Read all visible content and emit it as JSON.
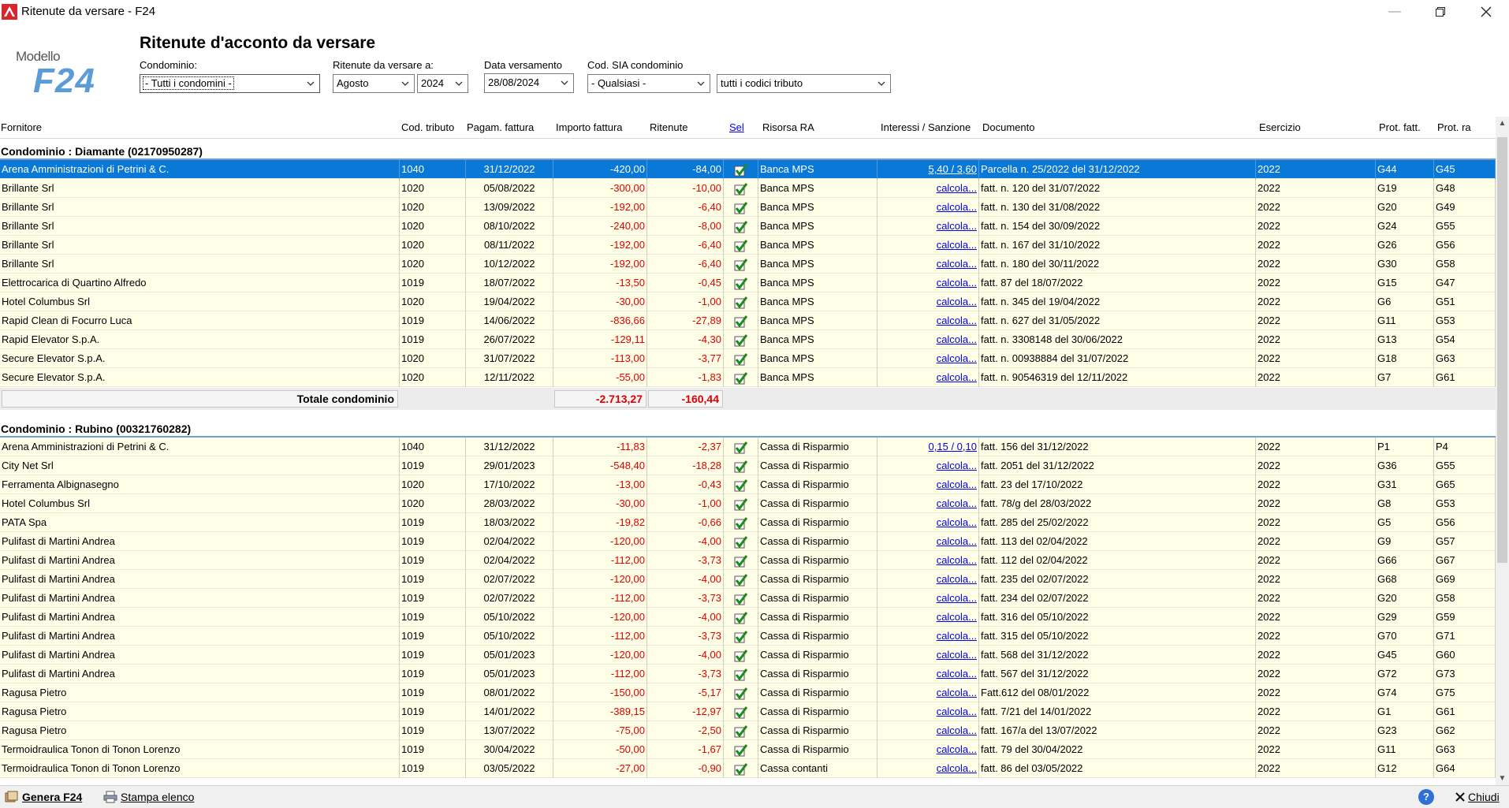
{
  "window": {
    "title": "Ritenute da versare - F24",
    "controls": [
      "minimize",
      "restore",
      "close"
    ]
  },
  "logo": {
    "small": "Modello",
    "big": "F24"
  },
  "header": {
    "title": "Ritenute d'acconto da versare",
    "condominio_label": "Condominio:",
    "condominio_value": "- Tutti i condomini -",
    "ritenute_label": "Ritenute da versare a:",
    "month_value": "Agosto",
    "year_value": "2024",
    "data_label": "Data versamento",
    "data_value": "28/08/2024",
    "sia_label": "Cod. SIA condominio",
    "sia_value": "- Qualsiasi -",
    "tributo_value": "tutti i codici tributo"
  },
  "columns": {
    "fornitore": "Fornitore",
    "cod_tributo": "Cod. tributo",
    "pagam": "Pagam. fattura",
    "importo": "Importo fattura",
    "ritenute": "Ritenute",
    "sel": "Sel",
    "risorsa": "Risorsa RA",
    "interessi": "Interessi / Sanzione",
    "documento": "Documento",
    "esercizio": "Esercizio",
    "prot_fatt": "Prot. fatt.",
    "prot_ra": "Prot. ra"
  },
  "groups": [
    {
      "title": "Condominio : Diamante (02170950287)",
      "total_label": "Totale condominio",
      "total_importo": "-2.713,27",
      "total_ritenute": "-160,44",
      "rows": [
        {
          "f": "Arena Amministrazioni di Petrini & C.",
          "t": "1040",
          "p": "31/12/2022",
          "i": "-420,00",
          "r": "-84,00",
          "ra": "Banca MPS",
          "is": "5,40 / 3,60",
          "d": "Parcella n. 25/2022 del 31/12/2022",
          "e": "2022",
          "pf": "G44",
          "pr": "G45"
        },
        {
          "f": "Brillante Srl",
          "t": "1020",
          "p": "05/08/2022",
          "i": "-300,00",
          "r": "-10,00",
          "ra": "Banca MPS",
          "is": "calcola...",
          "d": "fatt. n. 120 del 31/07/2022",
          "e": "2022",
          "pf": "G19",
          "pr": "G48"
        },
        {
          "f": "Brillante Srl",
          "t": "1020",
          "p": "13/09/2022",
          "i": "-192,00",
          "r": "-6,40",
          "ra": "Banca MPS",
          "is": "calcola...",
          "d": "fatt. n. 130 del 31/08/2022",
          "e": "2022",
          "pf": "G20",
          "pr": "G49"
        },
        {
          "f": "Brillante Srl",
          "t": "1020",
          "p": "08/10/2022",
          "i": "-240,00",
          "r": "-8,00",
          "ra": "Banca MPS",
          "is": "calcola...",
          "d": "fatt. n. 154 del 30/09/2022",
          "e": "2022",
          "pf": "G24",
          "pr": "G55"
        },
        {
          "f": "Brillante Srl",
          "t": "1020",
          "p": "08/11/2022",
          "i": "-192,00",
          "r": "-6,40",
          "ra": "Banca MPS",
          "is": "calcola...",
          "d": "fatt. n. 167 del 31/10/2022",
          "e": "2022",
          "pf": "G26",
          "pr": "G56"
        },
        {
          "f": "Brillante Srl",
          "t": "1020",
          "p": "10/12/2022",
          "i": "-192,00",
          "r": "-6,40",
          "ra": "Banca MPS",
          "is": "calcola...",
          "d": "fatt. n. 180 del 30/11/2022",
          "e": "2022",
          "pf": "G30",
          "pr": "G58"
        },
        {
          "f": "Elettrocarica di Quartino Alfredo",
          "t": "1019",
          "p": "18/07/2022",
          "i": "-13,50",
          "r": "-0,45",
          "ra": "Banca MPS",
          "is": "calcola...",
          "d": "fatt. 87 del 18/07/2022",
          "e": "2022",
          "pf": "G15",
          "pr": "G47"
        },
        {
          "f": "Hotel Columbus Srl",
          "t": "1020",
          "p": "19/04/2022",
          "i": "-30,00",
          "r": "-1,00",
          "ra": "Banca MPS",
          "is": "calcola...",
          "d": "fatt. n. 345 del 19/04/2022",
          "e": "2022",
          "pf": "G6",
          "pr": "G51"
        },
        {
          "f": "Rapid Clean di Focurro Luca",
          "t": "1019",
          "p": "14/06/2022",
          "i": "-836,66",
          "r": "-27,89",
          "ra": "Banca MPS",
          "is": "calcola...",
          "d": "fatt. n. 627 del 31/05/2022",
          "e": "2022",
          "pf": "G11",
          "pr": "G53"
        },
        {
          "f": "Rapid Elevator S.p.A.",
          "t": "1019",
          "p": "26/07/2022",
          "i": "-129,11",
          "r": "-4,30",
          "ra": "Banca MPS",
          "is": "calcola...",
          "d": "fatt. n. 3308148 del 30/06/2022",
          "e": "2022",
          "pf": "G13",
          "pr": "G54"
        },
        {
          "f": "Secure Elevator S.p.A.",
          "t": "1020",
          "p": "31/07/2022",
          "i": "-113,00",
          "r": "-3,77",
          "ra": "Banca MPS",
          "is": "calcola...",
          "d": "fatt. n. 00938884 del 31/07/2022",
          "e": "2022",
          "pf": "G18",
          "pr": "G63"
        },
        {
          "f": "Secure Elevator S.p.A.",
          "t": "1020",
          "p": "12/11/2022",
          "i": "-55,00",
          "r": "-1,83",
          "ra": "Banca MPS",
          "is": "calcola...",
          "d": "fatt. n. 90546319 del 12/11/2022",
          "e": "2022",
          "pf": "G7",
          "pr": "G61"
        }
      ]
    },
    {
      "title": "Condominio : Rubino (00321760282)",
      "rows": [
        {
          "f": "Arena Amministrazioni di Petrini & C.",
          "t": "1040",
          "p": "31/12/2022",
          "i": "-11,83",
          "r": "-2,37",
          "ra": "Cassa di Risparmio",
          "is": "0,15 / 0,10",
          "d": "fatt. 156 del 31/12/2022",
          "e": "2022",
          "pf": "P1",
          "pr": "P4"
        },
        {
          "f": "City Net Srl",
          "t": "1019",
          "p": "29/01/2023",
          "i": "-548,40",
          "r": "-18,28",
          "ra": "Cassa di Risparmio",
          "is": "calcola...",
          "d": "fatt. 2051 del 31/12/2022",
          "e": "2022",
          "pf": "G36",
          "pr": "G55"
        },
        {
          "f": "Ferramenta Albignasegno",
          "t": "1020",
          "p": "17/10/2022",
          "i": "-13,00",
          "r": "-0,43",
          "ra": "Cassa di Risparmio",
          "is": "calcola...",
          "d": "fatt. 23 del 17/10/2022",
          "e": "2022",
          "pf": "G31",
          "pr": "G65"
        },
        {
          "f": "Hotel Columbus Srl",
          "t": "1020",
          "p": "28/03/2022",
          "i": "-30,00",
          "r": "-1,00",
          "ra": "Cassa di Risparmio",
          "is": "calcola...",
          "d": "fatt. 78/g del 28/03/2022",
          "e": "2022",
          "pf": "G8",
          "pr": "G53"
        },
        {
          "f": "PATA Spa",
          "t": "1019",
          "p": "18/03/2022",
          "i": "-19,82",
          "r": "-0,66",
          "ra": "Cassa di Risparmio",
          "is": "calcola...",
          "d": "fatt. 285 del 25/02/2022",
          "e": "2022",
          "pf": "G5",
          "pr": "G56"
        },
        {
          "f": "Pulifast di Martini Andrea",
          "t": "1019",
          "p": "02/04/2022",
          "i": "-120,00",
          "r": "-4,00",
          "ra": "Cassa di Risparmio",
          "is": "calcola...",
          "d": "fatt. 113 del 02/04/2022",
          "e": "2022",
          "pf": "G9",
          "pr": "G57"
        },
        {
          "f": "Pulifast di Martini Andrea",
          "t": "1019",
          "p": "02/04/2022",
          "i": "-112,00",
          "r": "-3,73",
          "ra": "Cassa di Risparmio",
          "is": "calcola...",
          "d": "fatt. 112 del 02/04/2022",
          "e": "2022",
          "pf": "G66",
          "pr": "G67"
        },
        {
          "f": "Pulifast di Martini Andrea",
          "t": "1019",
          "p": "02/07/2022",
          "i": "-120,00",
          "r": "-4,00",
          "ra": "Cassa di Risparmio",
          "is": "calcola...",
          "d": "fatt. 235 del 02/07/2022",
          "e": "2022",
          "pf": "G68",
          "pr": "G69"
        },
        {
          "f": "Pulifast di Martini Andrea",
          "t": "1019",
          "p": "02/07/2022",
          "i": "-112,00",
          "r": "-3,73",
          "ra": "Cassa di Risparmio",
          "is": "calcola...",
          "d": "fatt. 234 del 02/07/2022",
          "e": "2022",
          "pf": "G20",
          "pr": "G58"
        },
        {
          "f": "Pulifast di Martini Andrea",
          "t": "1019",
          "p": "05/10/2022",
          "i": "-120,00",
          "r": "-4,00",
          "ra": "Cassa di Risparmio",
          "is": "calcola...",
          "d": "fatt. 316 del 05/10/2022",
          "e": "2022",
          "pf": "G29",
          "pr": "G59"
        },
        {
          "f": "Pulifast di Martini Andrea",
          "t": "1019",
          "p": "05/10/2022",
          "i": "-112,00",
          "r": "-3,73",
          "ra": "Cassa di Risparmio",
          "is": "calcola...",
          "d": "fatt. 315 del 05/10/2022",
          "e": "2022",
          "pf": "G70",
          "pr": "G71"
        },
        {
          "f": "Pulifast di Martini Andrea",
          "t": "1019",
          "p": "05/01/2023",
          "i": "-120,00",
          "r": "-4,00",
          "ra": "Cassa di Risparmio",
          "is": "calcola...",
          "d": "fatt. 568 del 31/12/2022",
          "e": "2022",
          "pf": "G45",
          "pr": "G60"
        },
        {
          "f": "Pulifast di Martini Andrea",
          "t": "1019",
          "p": "05/01/2023",
          "i": "-112,00",
          "r": "-3,73",
          "ra": "Cassa di Risparmio",
          "is": "calcola...",
          "d": "fatt. 567 del 31/12/2022",
          "e": "2022",
          "pf": "G72",
          "pr": "G73"
        },
        {
          "f": "Ragusa Pietro",
          "t": "1019",
          "p": "08/01/2022",
          "i": "-150,00",
          "r": "-5,17",
          "ra": "Cassa di Risparmio",
          "is": "calcola...",
          "d": "Fatt.612 del 08/01/2022",
          "e": "2022",
          "pf": "G74",
          "pr": "G75"
        },
        {
          "f": "Ragusa Pietro",
          "t": "1019",
          "p": "14/01/2022",
          "i": "-389,15",
          "r": "-12,97",
          "ra": "Cassa di Risparmio",
          "is": "calcola...",
          "d": "fatt. 7/21 del 14/01/2022",
          "e": "2022",
          "pf": "G1",
          "pr": "G61"
        },
        {
          "f": "Ragusa Pietro",
          "t": "1019",
          "p": "13/07/2022",
          "i": "-75,00",
          "r": "-2,50",
          "ra": "Cassa di Risparmio",
          "is": "calcola...",
          "d": "fatt. 167/a del 13/07/2022",
          "e": "2022",
          "pf": "G23",
          "pr": "G62"
        },
        {
          "f": "Termoidraulica Tonon di Tonon Lorenzo",
          "t": "1019",
          "p": "30/04/2022",
          "i": "-50,00",
          "r": "-1,67",
          "ra": "Cassa di Risparmio",
          "is": "calcola...",
          "d": "fatt. 79 del 30/04/2022",
          "e": "2022",
          "pf": "G11",
          "pr": "G63"
        },
        {
          "f": "Termoidraulica Tonon di Tonon Lorenzo",
          "t": "1019",
          "p": "03/05/2022",
          "i": "-27,00",
          "r": "-0,90",
          "ra": "Cassa contanti",
          "is": "calcola...",
          "d": "fatt. 86 del 03/05/2022",
          "e": "2022",
          "pf": "G12",
          "pr": "G64"
        }
      ]
    }
  ],
  "bottom": {
    "genera": "Genera F24",
    "stampa": "Stampa elenco",
    "help": "?",
    "chiudi": "Chiudi"
  }
}
